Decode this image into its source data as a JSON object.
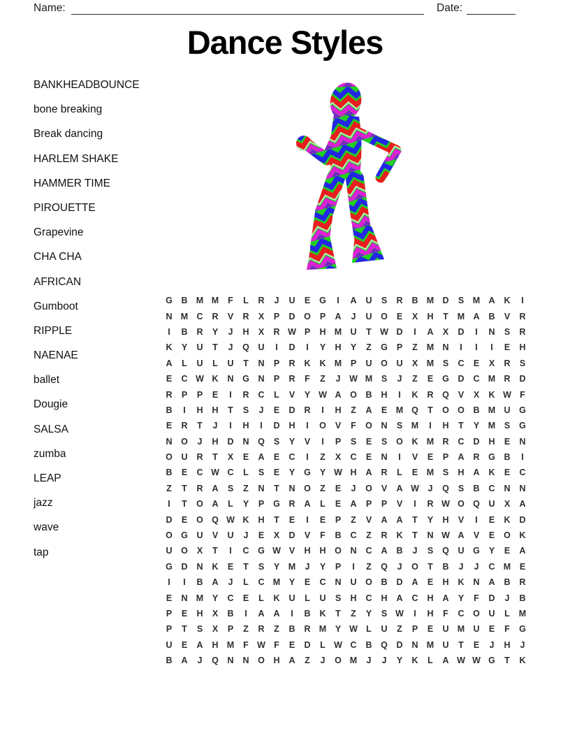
{
  "header": {
    "name_label": "Name:",
    "date_label": "Date:"
  },
  "title": "Dance Styles",
  "words": [
    "BANKHEADBOUNCE",
    "bone breaking",
    "Break dancing",
    "HARLEM SHAKE",
    "HAMMER TIME",
    "PIROUETTE",
    "Grapevine",
    "CHA CHA",
    "AFRICAN",
    "Gumboot",
    "RIPPLE",
    "NAENAE",
    "ballet",
    "Dougie",
    "SALSA",
    "zumba",
    "LEAP",
    "jazz",
    "wave",
    "tap"
  ],
  "grid": {
    "columns": 24,
    "rows": [
      "GBMMFLRJUEGIAUSRBMDSMAKI",
      "NMCRVRXPDOPAJUOEXHTMABVR",
      "IBRYJHXRWPHMUTWDIAXDINSR",
      "KYUTJQUIDIYHYZGPZMNIIIEH",
      "ALULUTNPRKKMPUOUXMSCEXRS",
      "ECWKNGNPRFZJWMSJZEGDCMRD",
      "RPPEIRCLVYWAOBHIKRQVXKWF",
      "BIHHTSJEDRIHZAEMQTOOBMUG",
      "ERTJIHIDHIOVFONSMIHTYMSG",
      "NOJHDNQSYVIPSESOKMRCDHEN",
      "OURTXEAECIZXCENIVEPARGBI",
      "BECWCLSEYGYWHARLEMSHAKEC",
      "ZTRASZNTNOZEJOVAWJQSBCNN",
      "ITOALYPGRALEAPPVIRWOQUXA",
      "DEOQWKHTEIEPZVAATYHVIEKD",
      "OGUVUJEXDVFBCZRKTNWAVEOK",
      "UOXTICGWVHHONCABJSQUGYEA",
      "GDNKETSYMJYPIZQJOTBJJCME",
      "IIBAJLCMYECNUOBDAEHKNABR",
      "ENMYCELKULUSHCHACHAYFDJB",
      "PEHXBIAAIBKTZYSWIHFCOULM",
      "PTSXPZRZBRMYWLUZPEUMUEFG",
      "UEAHMFWFEDLWCBQDNMUTEJHJ",
      "BAJQNNOHAZJOMJJYKLAWWGTK"
    ]
  },
  "dancer": {
    "pattern_colors": {
      "green": "#1fd11f",
      "blue": "#2326e4",
      "red": "#e81e1e",
      "magenta": "#dd1fd6",
      "purple": "#7a22cc"
    }
  }
}
